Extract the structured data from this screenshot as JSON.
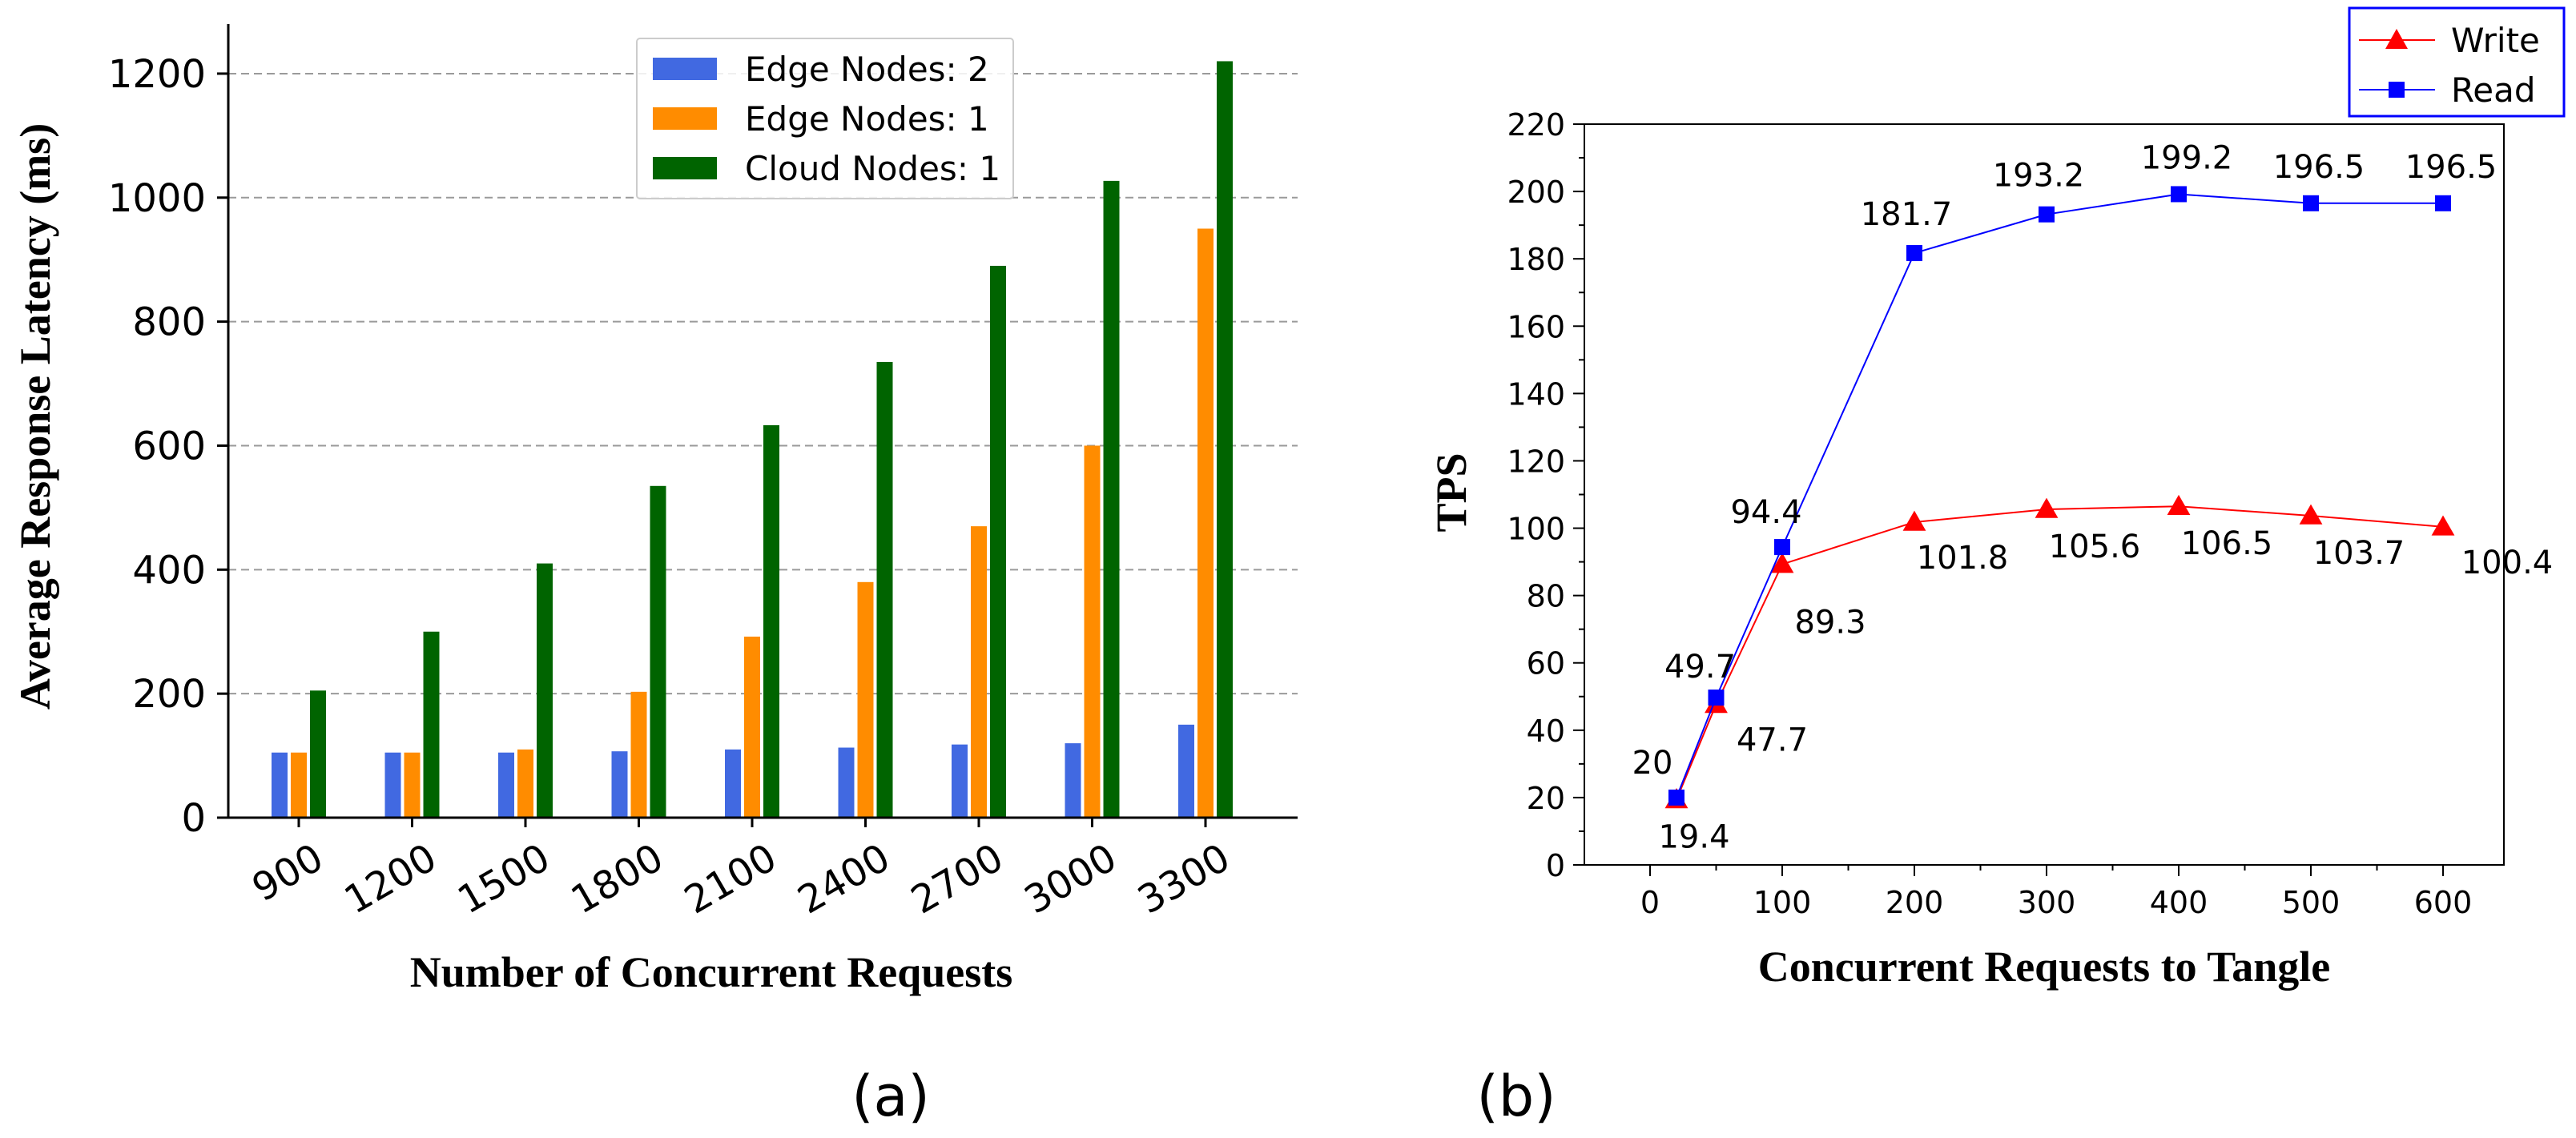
{
  "chart_data": [
    {
      "type": "bar",
      "panel_label": "(a)",
      "title": "",
      "xlabel": "Number of Concurrent Requests",
      "ylabel": "Average Response Latency (ms)",
      "ylim": [
        0,
        1280
      ],
      "yticks": [
        0,
        200,
        400,
        600,
        800,
        1000,
        1200
      ],
      "grid": "horizontal dashed",
      "legend_position": "top-center",
      "categories": [
        "900",
        "1200",
        "1500",
        "1800",
        "2100",
        "2400",
        "2700",
        "3000",
        "3300"
      ],
      "series": [
        {
          "name": "Edge Nodes: 2",
          "color": "#4169e1",
          "values": [
            105,
            105,
            105,
            107,
            110,
            113,
            118,
            120,
            150
          ]
        },
        {
          "name": "Edge Nodes: 1",
          "color": "#ff8c00",
          "values": [
            105,
            105,
            110,
            203,
            292,
            380,
            470,
            600,
            950
          ]
        },
        {
          "name": "Cloud Nodes: 1",
          "color": "#006400",
          "values": [
            205,
            300,
            410,
            535,
            633,
            735,
            890,
            1027,
            1220
          ]
        }
      ]
    },
    {
      "type": "line",
      "panel_label": "(b)",
      "title": "",
      "xlabel": "Concurrent Requests to Tangle",
      "ylabel": "TPS",
      "ylim": [
        0,
        220
      ],
      "yticks": [
        0,
        20,
        40,
        60,
        80,
        100,
        120,
        140,
        160,
        180,
        200,
        220
      ],
      "xticks": [
        "0",
        "100",
        "200",
        "300",
        "400",
        "500",
        "600"
      ],
      "legend_position": "top-right",
      "tick_categories": [
        0,
        100,
        200,
        300,
        400,
        500,
        600
      ],
      "points_x": [
        20,
        50,
        100,
        200,
        300,
        400,
        500,
        600
      ],
      "series": [
        {
          "name": "Write",
          "color": "#ff0000",
          "marker": "triangle",
          "values": [
            19.4,
            47.7,
            89.3,
            101.8,
            105.6,
            106.5,
            103.7,
            100.4
          ],
          "labels": [
            "19.4",
            "47.7",
            "89.3",
            "101.8",
            "105.6",
            "106.5",
            "103.7",
            "100.4"
          ]
        },
        {
          "name": "Read",
          "color": "#0000ff",
          "marker": "square",
          "values": [
            20,
            49.7,
            94.4,
            181.7,
            193.2,
            199.2,
            196.5,
            196.5
          ],
          "labels": [
            "20",
            "49.7",
            "94.4",
            "181.7",
            "193.2",
            "199.2",
            "196.5",
            "196.5"
          ]
        }
      ]
    }
  ]
}
